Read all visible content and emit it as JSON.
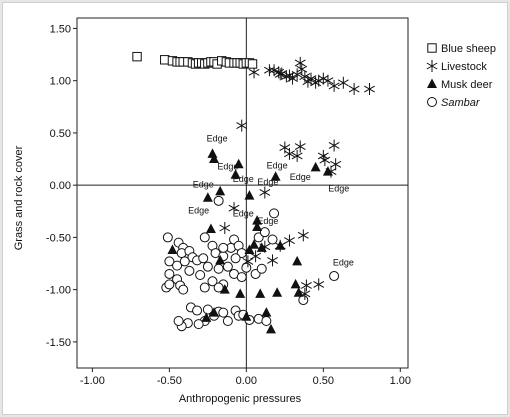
{
  "chart_data": {
    "type": "scatter",
    "title": "",
    "xlabel": "Anthropogenic pressures",
    "ylabel": "Grass and rock cover",
    "xlim": [
      -1.1,
      1.05
    ],
    "ylim": [
      -1.75,
      1.6
    ],
    "xticks": [
      -1.0,
      -0.5,
      0.0,
      0.5,
      1.0
    ],
    "yticks": [
      -1.5,
      -1.0,
      -0.5,
      0.0,
      0.5,
      1.0,
      1.5
    ],
    "xtick_labels": [
      "-1.00",
      "-0.50",
      "0.00",
      "0.50",
      "1.00"
    ],
    "ytick_labels": [
      "-1.50",
      "-1.00",
      "-0.50",
      "0.00",
      "0.50",
      "1.00",
      "1.50"
    ],
    "reference_lines": {
      "x": 0,
      "y": 0
    },
    "grid": false,
    "legend_position": "right",
    "series": [
      {
        "name": "Blue sheep",
        "marker": "open-square",
        "points": [
          [
            -0.71,
            1.23
          ],
          [
            -0.53,
            1.2
          ],
          [
            -0.48,
            1.19
          ],
          [
            -0.45,
            1.18
          ],
          [
            -0.43,
            1.18
          ],
          [
            -0.41,
            1.18
          ],
          [
            -0.38,
            1.18
          ],
          [
            -0.35,
            1.17
          ],
          [
            -0.33,
            1.16
          ],
          [
            -0.31,
            1.17
          ],
          [
            -0.29,
            1.17
          ],
          [
            -0.27,
            1.16
          ],
          [
            -0.25,
            1.17
          ],
          [
            -0.23,
            1.18
          ],
          [
            -0.21,
            1.18
          ],
          [
            -0.19,
            1.16
          ],
          [
            -0.16,
            1.19
          ],
          [
            -0.13,
            1.18
          ],
          [
            -0.11,
            1.17
          ],
          [
            -0.08,
            1.17
          ],
          [
            -0.06,
            1.17
          ],
          [
            -0.04,
            1.17
          ],
          [
            -0.02,
            1.16
          ],
          [
            0.0,
            1.17
          ],
          [
            0.02,
            1.17
          ],
          [
            0.04,
            1.16
          ]
        ]
      },
      {
        "name": "Livestock",
        "marker": "asterisk",
        "points": [
          [
            0.15,
            1.1
          ],
          [
            0.18,
            1.1
          ],
          [
            0.21,
            1.08
          ],
          [
            0.23,
            1.07
          ],
          [
            0.26,
            1.04
          ],
          [
            0.28,
            1.05
          ],
          [
            0.3,
            1.02
          ],
          [
            0.33,
            1.06
          ],
          [
            0.35,
            1.17
          ],
          [
            0.36,
            1.11
          ],
          [
            0.38,
            1.04
          ],
          [
            0.4,
            0.99
          ],
          [
            0.42,
            1.02
          ],
          [
            0.45,
            0.98
          ],
          [
            0.47,
            1.0
          ],
          [
            0.5,
            1.02
          ],
          [
            0.53,
            1.0
          ],
          [
            0.57,
            0.95
          ],
          [
            0.63,
            0.98
          ],
          [
            0.7,
            0.92
          ],
          [
            0.8,
            0.92
          ],
          [
            0.05,
            1.08
          ],
          [
            0.22,
            1.06
          ],
          [
            -0.03,
            0.57
          ],
          [
            0.35,
            0.37
          ],
          [
            0.57,
            0.38
          ],
          [
            0.25,
            0.36
          ],
          [
            0.28,
            0.3
          ],
          [
            0.33,
            0.28
          ],
          [
            0.5,
            0.28
          ],
          [
            0.51,
            0.24
          ],
          [
            0.58,
            0.2
          ],
          [
            0.55,
            0.13
          ],
          [
            0.12,
            -0.07
          ],
          [
            -0.08,
            -0.22
          ],
          [
            -0.14,
            -0.41
          ],
          [
            0.12,
            -0.59
          ],
          [
            0.22,
            -0.58
          ],
          [
            0.28,
            -0.53
          ],
          [
            0.37,
            -0.48
          ],
          [
            0.01,
            -0.73
          ],
          [
            0.17,
            -0.72
          ],
          [
            0.06,
            -0.68
          ],
          [
            0.38,
            -1.04
          ],
          [
            0.39,
            -0.96
          ],
          [
            0.47,
            -0.95
          ]
        ]
      },
      {
        "name": "Musk deer",
        "marker": "filled-triangle",
        "points": [
          [
            -0.22,
            0.3
          ],
          [
            -0.21,
            0.25
          ],
          [
            -0.05,
            0.2
          ],
          [
            -0.07,
            0.1
          ],
          [
            0.19,
            0.08
          ],
          [
            -0.17,
            -0.06
          ],
          [
            0.45,
            0.17
          ],
          [
            0.53,
            0.13
          ],
          [
            -0.25,
            -0.12
          ],
          [
            0.02,
            -0.1
          ],
          [
            0.07,
            -0.34
          ],
          [
            -0.23,
            -0.42
          ],
          [
            0.07,
            -0.4
          ],
          [
            0.05,
            -0.57
          ],
          [
            0.1,
            -0.6
          ],
          [
            0.22,
            -0.58
          ],
          [
            -0.48,
            -0.62
          ],
          [
            0.33,
            -0.73
          ],
          [
            -0.17,
            -0.72
          ],
          [
            0.02,
            -0.62
          ],
          [
            0.32,
            -0.95
          ],
          [
            -0.14,
            -1.0
          ],
          [
            -0.04,
            -1.04
          ],
          [
            0.09,
            -1.04
          ],
          [
            0.2,
            -1.03
          ],
          [
            0.34,
            -1.03
          ],
          [
            -0.21,
            -1.22
          ],
          [
            0.13,
            -1.22
          ],
          [
            -0.26,
            -1.27
          ],
          [
            -0.0,
            -1.26
          ],
          [
            0.16,
            -1.38
          ]
        ]
      },
      {
        "name": "Sambar",
        "marker": "open-circle",
        "points": [
          [
            -0.18,
            -0.15
          ],
          [
            0.18,
            -0.27
          ],
          [
            -0.51,
            -0.5
          ],
          [
            -0.44,
            -0.55
          ],
          [
            -0.41,
            -0.6
          ],
          [
            -0.42,
            -0.65
          ],
          [
            -0.37,
            -0.63
          ],
          [
            -0.35,
            -0.69
          ],
          [
            -0.5,
            -0.73
          ],
          [
            -0.45,
            -0.77
          ],
          [
            -0.4,
            -0.73
          ],
          [
            -0.32,
            -0.72
          ],
          [
            -0.27,
            -0.5
          ],
          [
            -0.22,
            -0.58
          ],
          [
            -0.2,
            -0.65
          ],
          [
            -0.15,
            -0.68
          ],
          [
            -0.1,
            -0.6
          ],
          [
            -0.08,
            -0.52
          ],
          [
            -0.05,
            -0.58
          ],
          [
            -0.03,
            -0.65
          ],
          [
            -0.28,
            -0.7
          ],
          [
            -0.25,
            -0.78
          ],
          [
            -0.18,
            -0.8
          ],
          [
            -0.12,
            -0.78
          ],
          [
            -0.07,
            -0.7
          ],
          [
            -0.5,
            -0.85
          ],
          [
            -0.45,
            -0.9
          ],
          [
            -0.37,
            -0.82
          ],
          [
            -0.3,
            -0.86
          ],
          [
            -0.22,
            -0.92
          ],
          [
            -0.15,
            -0.95
          ],
          [
            -0.08,
            -0.85
          ],
          [
            -0.03,
            -0.88
          ],
          [
            0.06,
            -0.85
          ],
          [
            0.08,
            -0.5
          ],
          [
            0.12,
            -0.45
          ],
          [
            0.17,
            -0.52
          ],
          [
            0.1,
            -0.8
          ],
          [
            -0.52,
            -0.98
          ],
          [
            -0.5,
            -0.95
          ],
          [
            -0.43,
            -0.96
          ],
          [
            -0.41,
            -1.0
          ],
          [
            -0.27,
            -0.98
          ],
          [
            -0.18,
            -0.98
          ],
          [
            -0.36,
            -1.17
          ],
          [
            -0.32,
            -1.2
          ],
          [
            -0.25,
            -1.19
          ],
          [
            -0.21,
            -1.25
          ],
          [
            -0.18,
            -1.21
          ],
          [
            -0.15,
            -1.22
          ],
          [
            -0.07,
            -1.2
          ],
          [
            -0.05,
            -1.25
          ],
          [
            -0.02,
            -1.24
          ],
          [
            -0.12,
            -1.3
          ],
          [
            -0.27,
            -1.3
          ],
          [
            -0.31,
            -1.33
          ],
          [
            -0.38,
            -1.32
          ],
          [
            -0.42,
            -1.35
          ],
          [
            -0.44,
            -1.3
          ],
          [
            0.02,
            -1.29
          ],
          [
            0.08,
            -1.28
          ],
          [
            0.13,
            -1.3
          ],
          [
            0.37,
            -1.1
          ],
          [
            0.57,
            -0.87
          ],
          [
            -0.15,
            -0.6
          ],
          [
            0.0,
            -0.79
          ]
        ]
      }
    ],
    "annotations": [
      {
        "text": "Edge",
        "x": -0.19,
        "y": 0.42
      },
      {
        "text": "Edge",
        "x": -0.12,
        "y": 0.15
      },
      {
        "text": "Edge",
        "x": -0.02,
        "y": 0.03
      },
      {
        "text": "Edge",
        "x": 0.2,
        "y": 0.16
      },
      {
        "text": "Edge",
        "x": 0.35,
        "y": 0.05
      },
      {
        "text": "Edge",
        "x": -0.28,
        "y": -0.02
      },
      {
        "text": "Edge",
        "x": 0.14,
        "y": 0.0
      },
      {
        "text": "Edge",
        "x": 0.6,
        "y": -0.06
      },
      {
        "text": "Edge",
        "x": -0.31,
        "y": -0.27
      },
      {
        "text": "Edge",
        "x": -0.02,
        "y": -0.3
      },
      {
        "text": "Edge",
        "x": 0.14,
        "y": -0.37
      },
      {
        "text": "Edge",
        "x": 0.63,
        "y": -0.77
      }
    ]
  }
}
